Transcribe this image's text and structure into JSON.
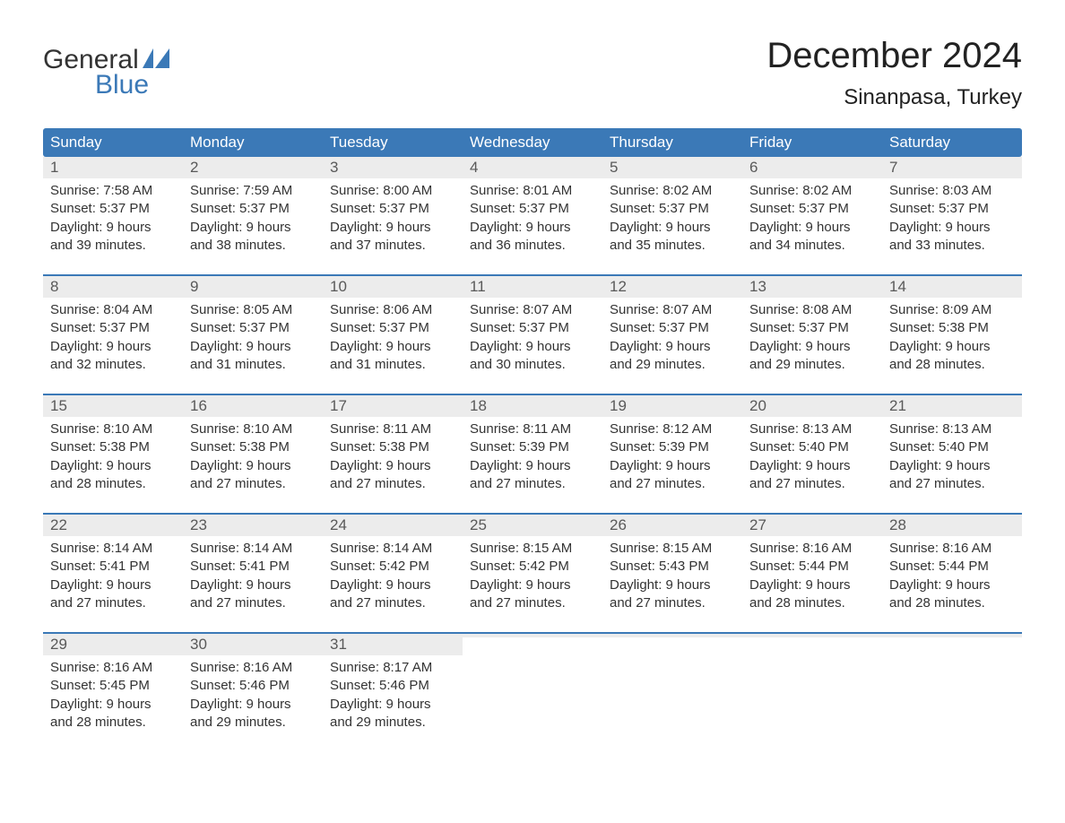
{
  "logo": {
    "text1": "General",
    "text2": "Blue",
    "flag_color": "#3b79b7"
  },
  "title": "December 2024",
  "location": "Sinanpasa, Turkey",
  "colors": {
    "header_bg": "#3b79b7",
    "header_text": "#ffffff",
    "daynum_bg": "#ececec",
    "daynum_text": "#595959",
    "body_text": "#333333",
    "rule": "#3b79b7"
  },
  "daynames": [
    "Sunday",
    "Monday",
    "Tuesday",
    "Wednesday",
    "Thursday",
    "Friday",
    "Saturday"
  ],
  "weeks": [
    [
      {
        "n": "1",
        "sunrise": "Sunrise: 7:58 AM",
        "sunset": "Sunset: 5:37 PM",
        "d1": "Daylight: 9 hours",
        "d2": "and 39 minutes."
      },
      {
        "n": "2",
        "sunrise": "Sunrise: 7:59 AM",
        "sunset": "Sunset: 5:37 PM",
        "d1": "Daylight: 9 hours",
        "d2": "and 38 minutes."
      },
      {
        "n": "3",
        "sunrise": "Sunrise: 8:00 AM",
        "sunset": "Sunset: 5:37 PM",
        "d1": "Daylight: 9 hours",
        "d2": "and 37 minutes."
      },
      {
        "n": "4",
        "sunrise": "Sunrise: 8:01 AM",
        "sunset": "Sunset: 5:37 PM",
        "d1": "Daylight: 9 hours",
        "d2": "and 36 minutes."
      },
      {
        "n": "5",
        "sunrise": "Sunrise: 8:02 AM",
        "sunset": "Sunset: 5:37 PM",
        "d1": "Daylight: 9 hours",
        "d2": "and 35 minutes."
      },
      {
        "n": "6",
        "sunrise": "Sunrise: 8:02 AM",
        "sunset": "Sunset: 5:37 PM",
        "d1": "Daylight: 9 hours",
        "d2": "and 34 minutes."
      },
      {
        "n": "7",
        "sunrise": "Sunrise: 8:03 AM",
        "sunset": "Sunset: 5:37 PM",
        "d1": "Daylight: 9 hours",
        "d2": "and 33 minutes."
      }
    ],
    [
      {
        "n": "8",
        "sunrise": "Sunrise: 8:04 AM",
        "sunset": "Sunset: 5:37 PM",
        "d1": "Daylight: 9 hours",
        "d2": "and 32 minutes."
      },
      {
        "n": "9",
        "sunrise": "Sunrise: 8:05 AM",
        "sunset": "Sunset: 5:37 PM",
        "d1": "Daylight: 9 hours",
        "d2": "and 31 minutes."
      },
      {
        "n": "10",
        "sunrise": "Sunrise: 8:06 AM",
        "sunset": "Sunset: 5:37 PM",
        "d1": "Daylight: 9 hours",
        "d2": "and 31 minutes."
      },
      {
        "n": "11",
        "sunrise": "Sunrise: 8:07 AM",
        "sunset": "Sunset: 5:37 PM",
        "d1": "Daylight: 9 hours",
        "d2": "and 30 minutes."
      },
      {
        "n": "12",
        "sunrise": "Sunrise: 8:07 AM",
        "sunset": "Sunset: 5:37 PM",
        "d1": "Daylight: 9 hours",
        "d2": "and 29 minutes."
      },
      {
        "n": "13",
        "sunrise": "Sunrise: 8:08 AM",
        "sunset": "Sunset: 5:37 PM",
        "d1": "Daylight: 9 hours",
        "d2": "and 29 minutes."
      },
      {
        "n": "14",
        "sunrise": "Sunrise: 8:09 AM",
        "sunset": "Sunset: 5:38 PM",
        "d1": "Daylight: 9 hours",
        "d2": "and 28 minutes."
      }
    ],
    [
      {
        "n": "15",
        "sunrise": "Sunrise: 8:10 AM",
        "sunset": "Sunset: 5:38 PM",
        "d1": "Daylight: 9 hours",
        "d2": "and 28 minutes."
      },
      {
        "n": "16",
        "sunrise": "Sunrise: 8:10 AM",
        "sunset": "Sunset: 5:38 PM",
        "d1": "Daylight: 9 hours",
        "d2": "and 27 minutes."
      },
      {
        "n": "17",
        "sunrise": "Sunrise: 8:11 AM",
        "sunset": "Sunset: 5:38 PM",
        "d1": "Daylight: 9 hours",
        "d2": "and 27 minutes."
      },
      {
        "n": "18",
        "sunrise": "Sunrise: 8:11 AM",
        "sunset": "Sunset: 5:39 PM",
        "d1": "Daylight: 9 hours",
        "d2": "and 27 minutes."
      },
      {
        "n": "19",
        "sunrise": "Sunrise: 8:12 AM",
        "sunset": "Sunset: 5:39 PM",
        "d1": "Daylight: 9 hours",
        "d2": "and 27 minutes."
      },
      {
        "n": "20",
        "sunrise": "Sunrise: 8:13 AM",
        "sunset": "Sunset: 5:40 PM",
        "d1": "Daylight: 9 hours",
        "d2": "and 27 minutes."
      },
      {
        "n": "21",
        "sunrise": "Sunrise: 8:13 AM",
        "sunset": "Sunset: 5:40 PM",
        "d1": "Daylight: 9 hours",
        "d2": "and 27 minutes."
      }
    ],
    [
      {
        "n": "22",
        "sunrise": "Sunrise: 8:14 AM",
        "sunset": "Sunset: 5:41 PM",
        "d1": "Daylight: 9 hours",
        "d2": "and 27 minutes."
      },
      {
        "n": "23",
        "sunrise": "Sunrise: 8:14 AM",
        "sunset": "Sunset: 5:41 PM",
        "d1": "Daylight: 9 hours",
        "d2": "and 27 minutes."
      },
      {
        "n": "24",
        "sunrise": "Sunrise: 8:14 AM",
        "sunset": "Sunset: 5:42 PM",
        "d1": "Daylight: 9 hours",
        "d2": "and 27 minutes."
      },
      {
        "n": "25",
        "sunrise": "Sunrise: 8:15 AM",
        "sunset": "Sunset: 5:42 PM",
        "d1": "Daylight: 9 hours",
        "d2": "and 27 minutes."
      },
      {
        "n": "26",
        "sunrise": "Sunrise: 8:15 AM",
        "sunset": "Sunset: 5:43 PM",
        "d1": "Daylight: 9 hours",
        "d2": "and 27 minutes."
      },
      {
        "n": "27",
        "sunrise": "Sunrise: 8:16 AM",
        "sunset": "Sunset: 5:44 PM",
        "d1": "Daylight: 9 hours",
        "d2": "and 28 minutes."
      },
      {
        "n": "28",
        "sunrise": "Sunrise: 8:16 AM",
        "sunset": "Sunset: 5:44 PM",
        "d1": "Daylight: 9 hours",
        "d2": "and 28 minutes."
      }
    ],
    [
      {
        "n": "29",
        "sunrise": "Sunrise: 8:16 AM",
        "sunset": "Sunset: 5:45 PM",
        "d1": "Daylight: 9 hours",
        "d2": "and 28 minutes."
      },
      {
        "n": "30",
        "sunrise": "Sunrise: 8:16 AM",
        "sunset": "Sunset: 5:46 PM",
        "d1": "Daylight: 9 hours",
        "d2": "and 29 minutes."
      },
      {
        "n": "31",
        "sunrise": "Sunrise: 8:17 AM",
        "sunset": "Sunset: 5:46 PM",
        "d1": "Daylight: 9 hours",
        "d2": "and 29 minutes."
      },
      {
        "empty": true
      },
      {
        "empty": true
      },
      {
        "empty": true
      },
      {
        "empty": true
      }
    ]
  ]
}
